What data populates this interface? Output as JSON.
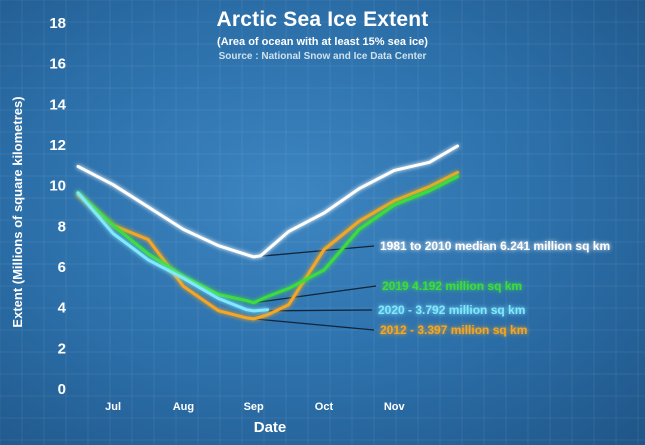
{
  "chart_data": {
    "type": "line",
    "title": "Arctic Sea Ice Extent",
    "subtitle": "(Area of ocean with at least 15% sea ice)",
    "source": "Source : National Snow and Ice Data Center",
    "xlabel": "Date",
    "ylabel": "Extent (Millions of square kilometres)",
    "xlim": [
      0,
      5.55
    ],
    "ylim": [
      0,
      18
    ],
    "y_ticks": [
      0,
      2,
      4,
      6,
      8,
      10,
      12,
      14,
      16,
      18
    ],
    "x_ticks": [
      {
        "label": "Jul",
        "x": 0.5
      },
      {
        "label": "Aug",
        "x": 1.5
      },
      {
        "label": "Sep",
        "x": 2.5
      },
      {
        "label": "Oct",
        "x": 3.5
      },
      {
        "label": "Nov",
        "x": 4.5
      }
    ],
    "grid": false,
    "series": [
      {
        "name": "1981 to 2010 median",
        "color": "#ffffff",
        "x": [
          0,
          0.5,
          1,
          1.5,
          2,
          2.5,
          2.6,
          3,
          3.5,
          4,
          4.5,
          5,
          5.4
        ],
        "values": [
          10.9,
          10.0,
          8.9,
          7.8,
          7.0,
          6.45,
          6.5,
          7.7,
          8.6,
          9.8,
          10.7,
          11.1,
          11.9
        ]
      },
      {
        "name": "2019",
        "color": "#3cdc3c",
        "x": [
          0,
          0.5,
          1,
          1.5,
          2,
          2.4,
          2.5,
          2.7,
          3.0,
          3.5,
          4.0,
          4.5,
          5.0,
          5.4
        ],
        "values": [
          9.6,
          8.0,
          6.6,
          5.5,
          4.6,
          4.3,
          4.19,
          4.5,
          4.9,
          5.8,
          7.8,
          9.0,
          9.7,
          10.4
        ]
      },
      {
        "name": "2020",
        "color": "#7fe9ff",
        "x": [
          0,
          0.5,
          1,
          1.5,
          2,
          2.4,
          2.5,
          2.7
        ],
        "values": [
          9.6,
          7.6,
          6.3,
          5.4,
          4.4,
          3.85,
          3.79,
          3.85
        ]
      },
      {
        "name": "2012",
        "color": "#f5a623",
        "x": [
          0,
          0.5,
          1,
          1.5,
          2,
          2.4,
          2.5,
          2.7,
          3.0,
          3.5,
          4.0,
          4.5,
          5.0,
          5.4
        ],
        "values": [
          9.5,
          8.0,
          7.3,
          5.0,
          3.8,
          3.45,
          3.4,
          3.6,
          4.1,
          6.8,
          8.2,
          9.2,
          9.9,
          10.6
        ]
      }
    ],
    "annotations": [
      {
        "text": "1981 to 2010 median 6.241 million sq km",
        "color": "#ffffff",
        "series": 0
      },
      {
        "text": "2019  4.192 million sq km",
        "color": "#3cdc3c",
        "series": 1
      },
      {
        "text": "2020 -  3.792 million sq km",
        "color": "#7fe9ff",
        "series": 2
      },
      {
        "text": "2012 -  3.397 million sq km",
        "color": "#f5a623",
        "series": 3
      }
    ]
  }
}
